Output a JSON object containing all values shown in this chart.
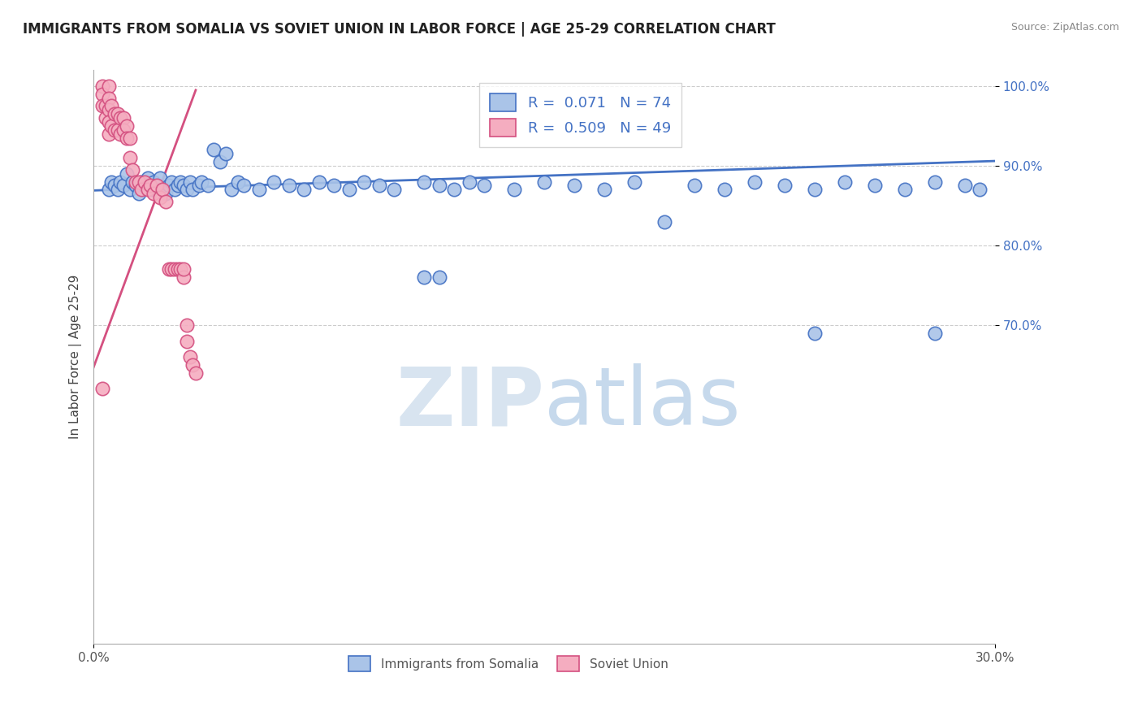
{
  "title": "IMMIGRANTS FROM SOMALIA VS SOVIET UNION IN LABOR FORCE | AGE 25-29 CORRELATION CHART",
  "source": "Source: ZipAtlas.com",
  "ylabel": "In Labor Force | Age 25-29",
  "xlim": [
    0.0,
    0.3
  ],
  "ylim": [
    0.3,
    1.02
  ],
  "x_tick_left": 0.0,
  "x_tick_right": 0.3,
  "yticks": [
    0.7,
    0.8,
    0.9,
    1.0
  ],
  "ytick_labels": [
    "70.0%",
    "80.0%",
    "90.0%",
    "100.0%"
  ],
  "somalia_R": 0.071,
  "somalia_N": 74,
  "soviet_R": 0.509,
  "soviet_N": 49,
  "somalia_color": "#aac4e8",
  "soviet_color": "#f5adc0",
  "somalia_edge_color": "#4472c4",
  "soviet_edge_color": "#d45080",
  "somalia_line_color": "#4472c4",
  "soviet_line_color": "#d45080",
  "watermark_color": "#dce8f5",
  "title_color": "#222222",
  "source_color": "#888888",
  "tick_color": "#4472c4",
  "grid_color": "#cccccc",
  "spine_color": "#aaaaaa",
  "ylabel_color": "#444444",
  "bottom_label_color": "#555555",
  "somalia_x": [
    0.005,
    0.006,
    0.007,
    0.008,
    0.009,
    0.01,
    0.011,
    0.012,
    0.013,
    0.014,
    0.015,
    0.016,
    0.017,
    0.018,
    0.019,
    0.02,
    0.021,
    0.022,
    0.023,
    0.024,
    0.025,
    0.026,
    0.027,
    0.028,
    0.029,
    0.03,
    0.031,
    0.032,
    0.033,
    0.035,
    0.036,
    0.038,
    0.04,
    0.042,
    0.044,
    0.046,
    0.048,
    0.05,
    0.055,
    0.06,
    0.065,
    0.07,
    0.075,
    0.08,
    0.085,
    0.09,
    0.095,
    0.1,
    0.11,
    0.115,
    0.12,
    0.125,
    0.13,
    0.14,
    0.15,
    0.16,
    0.17,
    0.18,
    0.19,
    0.2,
    0.21,
    0.22,
    0.23,
    0.24,
    0.25,
    0.26,
    0.27,
    0.28,
    0.29,
    0.295,
    0.11,
    0.115,
    0.24,
    0.28
  ],
  "somalia_y": [
    0.87,
    0.88,
    0.875,
    0.87,
    0.88,
    0.875,
    0.89,
    0.87,
    0.88,
    0.875,
    0.865,
    0.88,
    0.875,
    0.885,
    0.87,
    0.88,
    0.875,
    0.885,
    0.87,
    0.865,
    0.875,
    0.88,
    0.87,
    0.875,
    0.88,
    0.875,
    0.87,
    0.88,
    0.87,
    0.875,
    0.88,
    0.875,
    0.92,
    0.905,
    0.915,
    0.87,
    0.88,
    0.875,
    0.87,
    0.88,
    0.875,
    0.87,
    0.88,
    0.875,
    0.87,
    0.88,
    0.875,
    0.87,
    0.88,
    0.875,
    0.87,
    0.88,
    0.875,
    0.87,
    0.88,
    0.875,
    0.87,
    0.88,
    0.83,
    0.875,
    0.87,
    0.88,
    0.875,
    0.87,
    0.88,
    0.875,
    0.87,
    0.88,
    0.875,
    0.87,
    0.76,
    0.76,
    0.69,
    0.69
  ],
  "soviet_x": [
    0.003,
    0.003,
    0.003,
    0.004,
    0.004,
    0.005,
    0.005,
    0.005,
    0.005,
    0.005,
    0.006,
    0.006,
    0.007,
    0.007,
    0.008,
    0.008,
    0.009,
    0.009,
    0.01,
    0.01,
    0.011,
    0.011,
    0.012,
    0.012,
    0.013,
    0.014,
    0.015,
    0.016,
    0.017,
    0.018,
    0.019,
    0.02,
    0.021,
    0.022,
    0.023,
    0.024,
    0.025,
    0.026,
    0.027,
    0.028,
    0.029,
    0.03,
    0.03,
    0.031,
    0.031,
    0.032,
    0.033,
    0.034,
    0.003
  ],
  "soviet_y": [
    1.0,
    0.99,
    0.975,
    0.975,
    0.96,
    1.0,
    0.985,
    0.97,
    0.955,
    0.94,
    0.975,
    0.95,
    0.965,
    0.945,
    0.965,
    0.945,
    0.96,
    0.94,
    0.96,
    0.945,
    0.95,
    0.935,
    0.935,
    0.91,
    0.895,
    0.88,
    0.88,
    0.87,
    0.88,
    0.87,
    0.875,
    0.865,
    0.875,
    0.86,
    0.87,
    0.855,
    0.77,
    0.77,
    0.77,
    0.77,
    0.77,
    0.76,
    0.77,
    0.7,
    0.68,
    0.66,
    0.65,
    0.64,
    0.62
  ],
  "som_trend_x": [
    0.0,
    0.3
  ],
  "som_trend_y": [
    0.869,
    0.906
  ],
  "sov_trend_x": [
    0.0,
    0.034
  ],
  "sov_trend_y": [
    0.647,
    0.995
  ]
}
